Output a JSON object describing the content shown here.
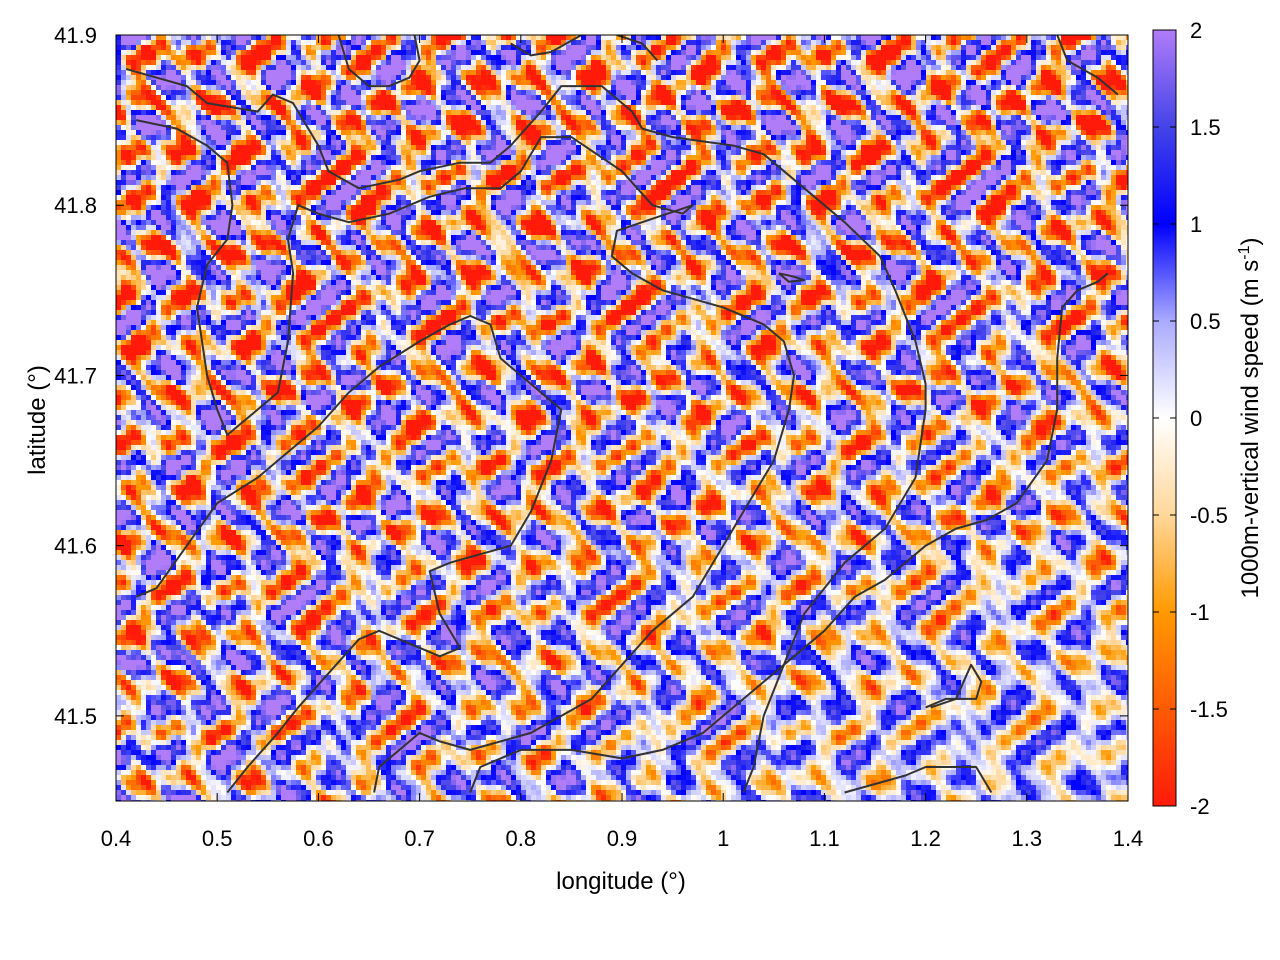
{
  "chart_data": {
    "type": "heatmap",
    "title": "",
    "xlabel": "longitude (°)",
    "ylabel": "latitude (°)",
    "xlim": [
      0.4,
      1.4
    ],
    "ylim": [
      41.45,
      41.9
    ],
    "x_ticks": [
      "0.4",
      "0.5",
      "0.6",
      "0.7",
      "0.8",
      "0.9",
      "1",
      "1.1",
      "1.2",
      "1.3",
      "1.4"
    ],
    "y_ticks": [
      "41.5",
      "41.6",
      "41.7",
      "41.8",
      "41.9"
    ],
    "colorbar": {
      "label": "1000m-vertical wind speed (m s",
      "label_superscript": "-1",
      "label_close": ")",
      "range": [
        -2,
        2
      ],
      "ticks": [
        "2",
        "1.5",
        "1",
        "0.5",
        "0",
        "-0.5",
        "-1",
        "-1.5",
        "-2"
      ],
      "stops": [
        {
          "value": -2,
          "color": "#ff1a0a"
        },
        {
          "value": -1,
          "color": "#ff9a00"
        },
        {
          "value": -0.5,
          "color": "#ffd79a"
        },
        {
          "value": 0,
          "color": "#ffffff"
        },
        {
          "value": 0.5,
          "color": "#aaaaff"
        },
        {
          "value": 1,
          "color": "#0000ff"
        },
        {
          "value": 1.5,
          "color": "#4444e8"
        },
        {
          "value": 2,
          "color": "#b07cf8"
        }
      ]
    },
    "field_description_note": null,
    "contour_color": "#333333",
    "contours": [
      [
        [
          0.41,
          41.88
        ],
        [
          0.47,
          41.87
        ],
        [
          0.49,
          41.86
        ],
        [
          0.54,
          41.855
        ],
        [
          0.555,
          41.865
        ],
        [
          0.575,
          41.86
        ],
        [
          0.6,
          41.835
        ],
        [
          0.61,
          41.82
        ],
        [
          0.64,
          41.81
        ],
        [
          0.68,
          41.815
        ],
        [
          0.7,
          41.82
        ],
        [
          0.74,
          41.825
        ],
        [
          0.77,
          41.825
        ],
        [
          0.79,
          41.835
        ],
        [
          0.82,
          41.855
        ],
        [
          0.84,
          41.87
        ],
        [
          0.88,
          41.87
        ],
        [
          0.91,
          41.855
        ],
        [
          0.92,
          41.845
        ],
        [
          0.95,
          41.84
        ],
        [
          1.01,
          41.835
        ],
        [
          1.04,
          41.83
        ],
        [
          1.08,
          41.81
        ],
        [
          1.12,
          41.79
        ],
        [
          1.155,
          41.77
        ],
        [
          1.17,
          41.75
        ],
        [
          1.19,
          41.72
        ],
        [
          1.2,
          41.695
        ],
        [
          1.2,
          41.68
        ],
        [
          1.19,
          41.64
        ],
        [
          1.16,
          41.61
        ],
        [
          1.12,
          41.59
        ],
        [
          1.08,
          41.56
        ],
        [
          1.06,
          41.53
        ],
        [
          1.04,
          41.5
        ],
        [
          1.03,
          41.47
        ],
        [
          1.02,
          41.455
        ]
      ],
      [
        [
          0.42,
          41.85
        ],
        [
          0.46,
          41.845
        ],
        [
          0.49,
          41.835
        ],
        [
          0.51,
          41.825
        ],
        [
          0.515,
          41.8
        ],
        [
          0.51,
          41.78
        ],
        [
          0.49,
          41.765
        ],
        [
          0.48,
          41.74
        ],
        [
          0.485,
          41.72
        ],
        [
          0.49,
          41.7
        ],
        [
          0.5,
          41.68
        ],
        [
          0.51,
          41.665
        ],
        [
          0.52,
          41.67
        ],
        [
          0.54,
          41.68
        ],
        [
          0.56,
          41.69
        ],
        [
          0.57,
          41.72
        ],
        [
          0.575,
          41.76
        ],
        [
          0.57,
          41.78
        ],
        [
          0.58,
          41.8
        ],
        [
          0.6,
          41.795
        ],
        [
          0.63,
          41.79
        ],
        [
          0.67,
          41.795
        ],
        [
          0.71,
          41.805
        ],
        [
          0.745,
          41.81
        ],
        [
          0.78,
          41.81
        ],
        [
          0.8,
          41.82
        ],
        [
          0.82,
          41.84
        ],
        [
          0.85,
          41.84
        ],
        [
          0.9,
          41.82
        ],
        [
          0.93,
          41.8
        ],
        [
          0.96,
          41.795
        ],
        [
          0.97,
          41.8
        ],
        [
          0.92,
          41.79
        ],
        [
          0.895,
          41.785
        ],
        [
          0.89,
          41.77
        ],
        [
          0.91,
          41.76
        ],
        [
          0.94,
          41.75
        ],
        [
          0.97,
          41.745
        ],
        [
          1.0,
          41.74
        ],
        [
          1.04,
          41.73
        ],
        [
          1.06,
          41.72
        ],
        [
          1.07,
          41.7
        ],
        [
          1.065,
          41.68
        ],
        [
          1.05,
          41.65
        ],
        [
          1.02,
          41.62
        ],
        [
          1.0,
          41.6
        ],
        [
          0.97,
          41.57
        ],
        [
          0.93,
          41.55
        ],
        [
          0.9,
          41.53
        ],
        [
          0.87,
          41.51
        ],
        [
          0.84,
          41.5
        ],
        [
          0.81,
          41.49
        ],
        [
          0.78,
          41.485
        ],
        [
          0.75,
          41.48
        ],
        [
          0.72,
          41.485
        ],
        [
          0.7,
          41.49
        ],
        [
          0.66,
          41.47
        ],
        [
          0.655,
          41.455
        ]
      ],
      [
        [
          0.42,
          41.57
        ],
        [
          0.44,
          41.575
        ],
        [
          0.47,
          41.6
        ],
        [
          0.5,
          41.625
        ],
        [
          0.54,
          41.64
        ],
        [
          0.57,
          41.655
        ],
        [
          0.6,
          41.67
        ],
        [
          0.63,
          41.69
        ],
        [
          0.66,
          41.705
        ],
        [
          0.7,
          41.72
        ],
        [
          0.73,
          41.73
        ],
        [
          0.75,
          41.735
        ],
        [
          0.77,
          41.73
        ],
        [
          0.78,
          41.71
        ],
        [
          0.8,
          41.7
        ],
        [
          0.82,
          41.69
        ],
        [
          0.84,
          41.68
        ],
        [
          0.83,
          41.65
        ],
        [
          0.81,
          41.62
        ],
        [
          0.79,
          41.6
        ],
        [
          0.76,
          41.595
        ],
        [
          0.73,
          41.59
        ],
        [
          0.71,
          41.585
        ],
        [
          0.72,
          41.56
        ],
        [
          0.74,
          41.54
        ],
        [
          0.72,
          41.535
        ],
        [
          0.68,
          41.545
        ],
        [
          0.66,
          41.55
        ],
        [
          0.64,
          41.545
        ],
        [
          0.61,
          41.525
        ],
        [
          0.58,
          41.505
        ],
        [
          0.56,
          41.49
        ],
        [
          0.53,
          41.47
        ],
        [
          0.51,
          41.455
        ]
      ],
      [
        [
          0.75,
          41.455
        ],
        [
          0.76,
          41.47
        ],
        [
          0.8,
          41.48
        ],
        [
          0.85,
          41.48
        ],
        [
          0.9,
          41.475
        ],
        [
          0.94,
          41.48
        ],
        [
          0.98,
          41.49
        ],
        [
          1.02,
          41.51
        ],
        [
          1.06,
          41.53
        ],
        [
          1.1,
          41.55
        ],
        [
          1.13,
          41.57
        ],
        [
          1.16,
          41.58
        ],
        [
          1.2,
          41.6
        ],
        [
          1.23,
          41.61
        ],
        [
          1.26,
          41.615
        ],
        [
          1.29,
          41.625
        ],
        [
          1.32,
          41.65
        ],
        [
          1.33,
          41.68
        ],
        [
          1.33,
          41.71
        ],
        [
          1.335,
          41.74
        ],
        [
          1.35,
          41.75
        ],
        [
          1.37,
          41.755
        ],
        [
          1.38,
          41.76
        ]
      ],
      [
        [
          1.12,
          41.455
        ],
        [
          1.15,
          41.46
        ],
        [
          1.18,
          41.465
        ],
        [
          1.2,
          41.47
        ],
        [
          1.23,
          41.47
        ],
        [
          1.25,
          41.47
        ],
        [
          1.265,
          41.455
        ]
      ],
      [
        [
          1.2,
          41.505
        ],
        [
          1.22,
          41.51
        ],
        [
          1.25,
          41.51
        ],
        [
          1.255,
          41.52
        ],
        [
          1.245,
          41.53
        ],
        [
          1.23,
          41.51
        ],
        [
          1.205,
          41.505
        ]
      ],
      [
        [
          0.62,
          41.9
        ],
        [
          0.63,
          41.88
        ],
        [
          0.65,
          41.87
        ],
        [
          0.67,
          41.87
        ],
        [
          0.69,
          41.875
        ],
        [
          0.7,
          41.885
        ],
        [
          0.695,
          41.9
        ]
      ],
      [
        [
          0.79,
          41.895
        ],
        [
          0.81,
          41.888
        ],
        [
          0.83,
          41.89
        ],
        [
          0.86,
          41.9
        ]
      ],
      [
        [
          0.895,
          41.9
        ],
        [
          0.92,
          41.895
        ],
        [
          0.935,
          41.885
        ]
      ],
      [
        [
          1.33,
          41.9
        ],
        [
          1.34,
          41.885
        ],
        [
          1.37,
          41.875
        ],
        [
          1.39,
          41.865
        ]
      ],
      [
        [
          1.055,
          41.76
        ],
        [
          1.07,
          41.758
        ],
        [
          1.08,
          41.756
        ],
        [
          1.065,
          41.755
        ],
        [
          1.055,
          41.76
        ]
      ]
    ]
  }
}
